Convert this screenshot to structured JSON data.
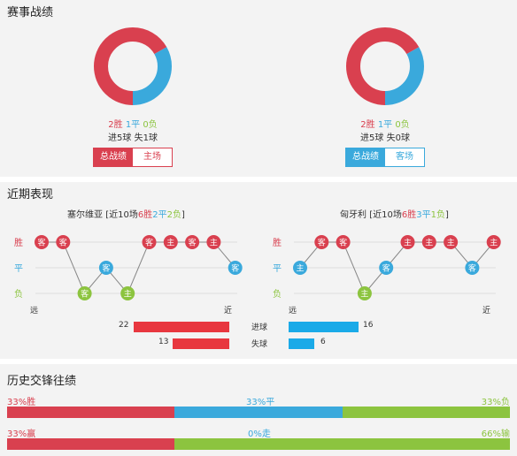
{
  "sections": {
    "record_title": "赛事战绩",
    "recent_title": "近期表现",
    "h2h_title": "历史交锋往绩"
  },
  "colors": {
    "win": "#d9404f",
    "draw": "#3aa9dc",
    "lose": "#8cc43f",
    "bar_red": "#e8373f",
    "bar_blue": "#1aaae8"
  },
  "record": {
    "home": {
      "win": "2胜",
      "draw": "1平",
      "lose": "0负",
      "goals": "进5球",
      "conceded": "失1球",
      "donut": [
        2,
        1,
        0
      ],
      "tabs": [
        "总战绩",
        "主场"
      ]
    },
    "away": {
      "win": "2胜",
      "draw": "1平",
      "lose": "0负",
      "goals": "进5球",
      "conceded": "失0球",
      "donut": [
        2,
        1,
        0
      ],
      "tabs": [
        "总战绩",
        "客场"
      ]
    }
  },
  "recent": {
    "row_labels": [
      "胜",
      "平",
      "负"
    ],
    "axis_far": "远",
    "axis_near": "近",
    "home": {
      "name": "塞尔维亚",
      "summary_prefix": "[近10场",
      "wins": "6胜",
      "draws": "2平",
      "losses": "2负",
      "summary_suffix": "]",
      "results": [
        "W",
        "W",
        "L",
        "D",
        "L",
        "W",
        "W",
        "W",
        "W",
        "D"
      ],
      "venues": [
        "客",
        "客",
        "客",
        "客",
        "主",
        "客",
        "主",
        "客",
        "主",
        "客"
      ]
    },
    "away": {
      "name": "匈牙利",
      "summary_prefix": "[近10场",
      "wins": "6胜",
      "draws": "3平",
      "losses": "1负",
      "summary_suffix": "]",
      "results": [
        "D",
        "W",
        "W",
        "L",
        "D",
        "W",
        "W",
        "W",
        "D",
        "W"
      ],
      "venues": [
        "主",
        "客",
        "客",
        "主",
        "客",
        "主",
        "主",
        "主",
        "客",
        "主"
      ]
    },
    "stats": {
      "goals_label": "进球",
      "conceded_label": "失球",
      "home_goals": 22,
      "away_goals": 16,
      "home_conceded": 13,
      "away_conceded": 6
    }
  },
  "h2h": {
    "row1": {
      "left": "33%胜",
      "mid": "33%平",
      "right": "33%负",
      "values": [
        33,
        33,
        33
      ]
    },
    "row2": {
      "left": "33%赢",
      "mid": "0%走",
      "right": "66%输",
      "values": [
        33,
        0,
        66
      ]
    }
  }
}
